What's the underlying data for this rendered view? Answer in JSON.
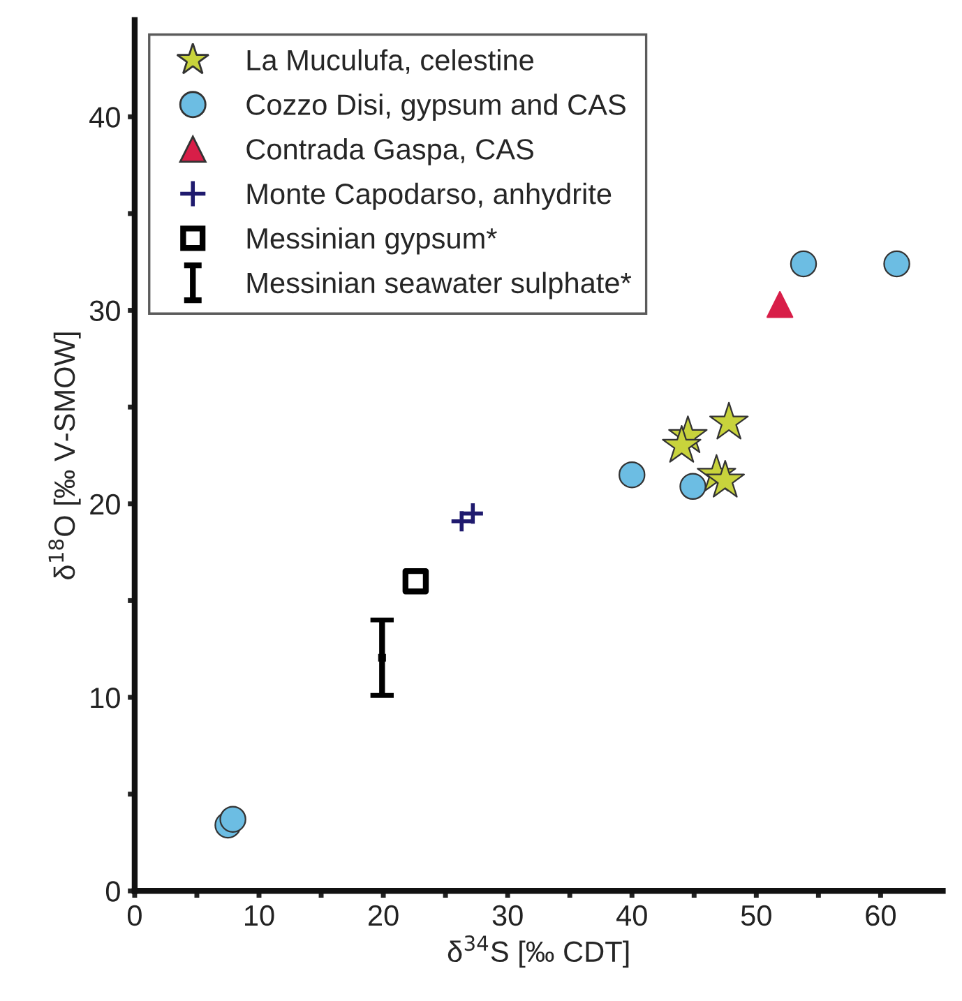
{
  "chart_data": {
    "type": "scatter",
    "xlabel": "δ$^{34}$S [‰ CDT]",
    "ylabel": "δ$^{18}$O [‰ V-SMOW]",
    "xlim": [
      0,
      65
    ],
    "ylim": [
      0,
      45
    ],
    "xticks": [
      0,
      {
        "value": 5,
        "label": null
      },
      10,
      {
        "value": 15,
        "label": null
      },
      20,
      {
        "value": 25,
        "label": null
      },
      30,
      {
        "value": 35,
        "label": null
      },
      40,
      {
        "value": 45,
        "label": null
      },
      50,
      {
        "value": 55,
        "label": null
      },
      60
    ],
    "yticks": [
      0,
      {
        "value": 5,
        "label": null
      },
      10,
      {
        "value": 15,
        "label": null
      },
      20,
      {
        "value": 25,
        "label": null
      },
      30,
      {
        "value": 35,
        "label": null
      },
      40
    ],
    "grid": false,
    "legend": "top left",
    "series": [
      {
        "name": "La Muculufa, celestine",
        "color": "#c8d33c",
        "marker": "star",
        "x": [
          47.8,
          44.5,
          44.0,
          46.8,
          47.5
        ],
        "values": [
          24.2,
          23.5,
          23.0,
          21.5,
          21.2
        ]
      },
      {
        "name": "Cozzo Disi, gypsum and CAS",
        "color": "#6cbde3",
        "marker": "circle",
        "x": [
          53.8,
          61.3,
          40.0,
          44.9,
          7.5,
          7.9
        ],
        "values": [
          32.4,
          32.4,
          21.5,
          20.9,
          3.4,
          3.7
        ]
      },
      {
        "name": "Contrada Gaspa, CAS",
        "color": "#d81e48",
        "marker": "triangle",
        "x": [
          51.9
        ],
        "values": [
          30.3
        ]
      },
      {
        "name": "Monte Capodarso, anhydrite",
        "color": "#1f1a6e",
        "marker": "cross",
        "x": [
          26.3,
          27.2
        ],
        "values": [
          19.1,
          19.5
        ]
      },
      {
        "name": "Messinian gypsum*",
        "color": "#000000",
        "marker": "square",
        "x": [
          22.6
        ],
        "values": [
          16.0
        ]
      },
      {
        "name": "Messinian seawater sulphate*",
        "color": "#000000",
        "marker": "square",
        "x": [
          19.9
        ],
        "values": [
          12.05
        ],
        "errors": [
          [
            10.1,
            14.0
          ]
        ]
      }
    ]
  }
}
